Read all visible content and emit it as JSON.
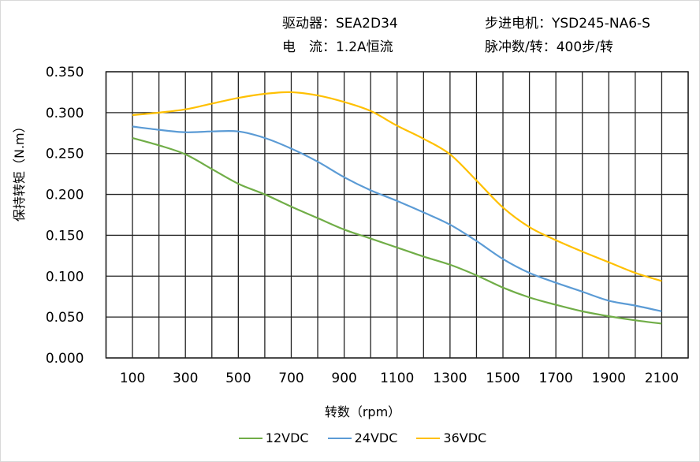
{
  "header": {
    "driver": "驱动器：SEA2D34",
    "motor": "步进电机：YSD245-NA6-S",
    "current": "电　流：1.2A恒流",
    "pulses": "脉冲数/转：400步/转"
  },
  "chart_data": {
    "type": "line",
    "xlabel": "转数（rpm）",
    "ylabel": "保持转矩（N.m）",
    "xlim": [
      0,
      2200
    ],
    "ylim": [
      0,
      0.35
    ],
    "x_ticks": [
      100,
      300,
      500,
      700,
      900,
      1100,
      1300,
      1500,
      1700,
      1900,
      2100
    ],
    "y_ticks": [
      "0.000",
      "0.050",
      "0.100",
      "0.150",
      "0.200",
      "0.250",
      "0.300",
      "0.350"
    ],
    "grid": true,
    "legend": "bottom",
    "x": [
      100,
      200,
      300,
      400,
      500,
      600,
      700,
      800,
      900,
      1000,
      1100,
      1200,
      1300,
      1400,
      1500,
      1600,
      1700,
      1800,
      1900,
      2000,
      2100
    ],
    "series": [
      {
        "name": "12VDC",
        "color": "#70ad47",
        "values": [
          0.269,
          0.26,
          0.249,
          0.231,
          0.213,
          0.2,
          0.185,
          0.171,
          0.157,
          0.146,
          0.135,
          0.124,
          0.114,
          0.101,
          0.086,
          0.074,
          0.065,
          0.057,
          0.051,
          0.046,
          0.042
        ]
      },
      {
        "name": "24VDC",
        "color": "#5b9bd5",
        "values": [
          0.283,
          0.279,
          0.276,
          0.277,
          0.277,
          0.269,
          0.256,
          0.24,
          0.221,
          0.205,
          0.192,
          0.178,
          0.163,
          0.143,
          0.121,
          0.104,
          0.092,
          0.081,
          0.07,
          0.064,
          0.057
        ]
      },
      {
        "name": "36VDC",
        "color": "#ffc000",
        "values": [
          0.297,
          0.3,
          0.304,
          0.311,
          0.318,
          0.323,
          0.325,
          0.321,
          0.313,
          0.302,
          0.284,
          0.268,
          0.249,
          0.217,
          0.184,
          0.16,
          0.144,
          0.13,
          0.117,
          0.104,
          0.094
        ]
      }
    ]
  }
}
